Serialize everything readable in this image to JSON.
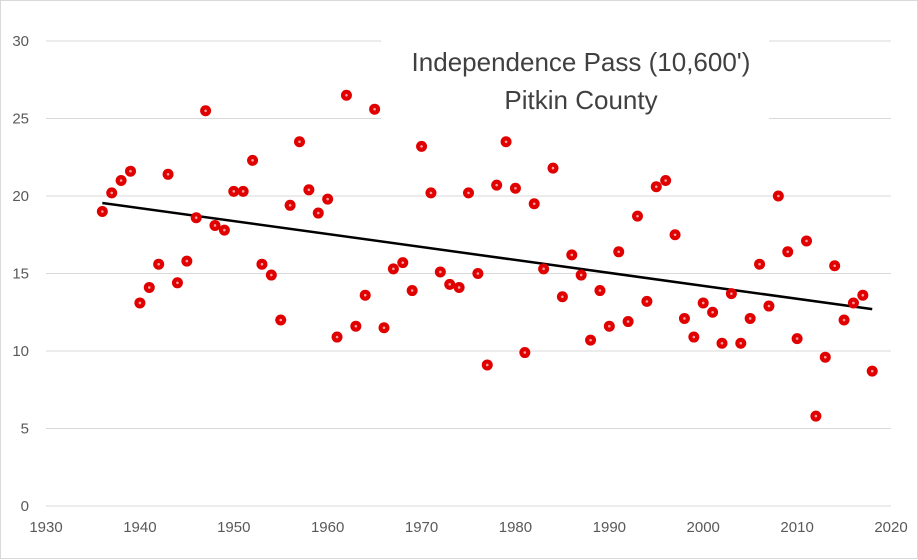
{
  "chart_data": {
    "type": "scatter",
    "title": [
      "Independence Pass (10,600')",
      "Pitkin County"
    ],
    "xlabel": "",
    "ylabel": "",
    "xlim": [
      1930,
      2020
    ],
    "ylim": [
      0,
      30
    ],
    "x_ticks": [
      1930,
      1940,
      1950,
      1960,
      1970,
      1980,
      1990,
      2000,
      2010,
      2020
    ],
    "y_ticks": [
      0,
      5,
      10,
      15,
      20,
      25,
      30
    ],
    "grid": "horizontal",
    "marker_color": "#e00000",
    "marker_center_color": "#f4a0a0",
    "trendline": {
      "type": "linear",
      "x": [
        1936,
        2018
      ],
      "y": [
        19.55,
        12.7
      ],
      "color": "#000000"
    },
    "points": [
      [
        1936,
        19.0
      ],
      [
        1937,
        20.2
      ],
      [
        1938,
        21.0
      ],
      [
        1939,
        21.6
      ],
      [
        1940,
        13.1
      ],
      [
        1941,
        14.1
      ],
      [
        1942,
        15.6
      ],
      [
        1943,
        21.4
      ],
      [
        1944,
        14.4
      ],
      [
        1945,
        15.8
      ],
      [
        1946,
        18.6
      ],
      [
        1947,
        25.5
      ],
      [
        1948,
        18.1
      ],
      [
        1949,
        17.8
      ],
      [
        1950,
        20.3
      ],
      [
        1951,
        20.3
      ],
      [
        1952,
        22.3
      ],
      [
        1953,
        15.6
      ],
      [
        1954,
        14.9
      ],
      [
        1955,
        12.0
      ],
      [
        1956,
        19.4
      ],
      [
        1957,
        23.5
      ],
      [
        1958,
        20.4
      ],
      [
        1959,
        18.9
      ],
      [
        1960,
        19.8
      ],
      [
        1961,
        10.9
      ],
      [
        1962,
        26.5
      ],
      [
        1963,
        11.6
      ],
      [
        1964,
        13.6
      ],
      [
        1965,
        25.6
      ],
      [
        1966,
        11.5
      ],
      [
        1967,
        15.3
      ],
      [
        1968,
        15.7
      ],
      [
        1969,
        13.9
      ],
      [
        1970,
        23.2
      ],
      [
        1971,
        20.2
      ],
      [
        1972,
        15.1
      ],
      [
        1973,
        14.3
      ],
      [
        1974,
        14.1
      ],
      [
        1975,
        20.2
      ],
      [
        1976,
        15.0
      ],
      [
        1977,
        9.1
      ],
      [
        1978,
        20.7
      ],
      [
        1979,
        23.5
      ],
      [
        1980,
        20.5
      ],
      [
        1981,
        9.9
      ],
      [
        1982,
        19.5
      ],
      [
        1983,
        15.3
      ],
      [
        1984,
        21.8
      ],
      [
        1985,
        13.5
      ],
      [
        1986,
        16.2
      ],
      [
        1987,
        14.9
      ],
      [
        1988,
        10.7
      ],
      [
        1989,
        13.9
      ],
      [
        1990,
        11.6
      ],
      [
        1991,
        16.4
      ],
      [
        1992,
        11.9
      ],
      [
        1993,
        18.7
      ],
      [
        1994,
        13.2
      ],
      [
        1995,
        20.6
      ],
      [
        1996,
        21.0
      ],
      [
        1997,
        17.5
      ],
      [
        1998,
        12.1
      ],
      [
        1999,
        10.9
      ],
      [
        2000,
        13.1
      ],
      [
        2001,
        12.5
      ],
      [
        2002,
        10.5
      ],
      [
        2003,
        13.7
      ],
      [
        2004,
        10.5
      ],
      [
        2005,
        12.1
      ],
      [
        2006,
        15.6
      ],
      [
        2007,
        12.9
      ],
      [
        2008,
        20.0
      ],
      [
        2009,
        16.4
      ],
      [
        2010,
        10.8
      ],
      [
        2011,
        17.1
      ],
      [
        2012,
        5.8
      ],
      [
        2013,
        9.6
      ],
      [
        2014,
        15.5
      ],
      [
        2015,
        12.0
      ],
      [
        2016,
        13.1
      ],
      [
        2017,
        13.6
      ],
      [
        2018,
        8.7
      ]
    ]
  }
}
